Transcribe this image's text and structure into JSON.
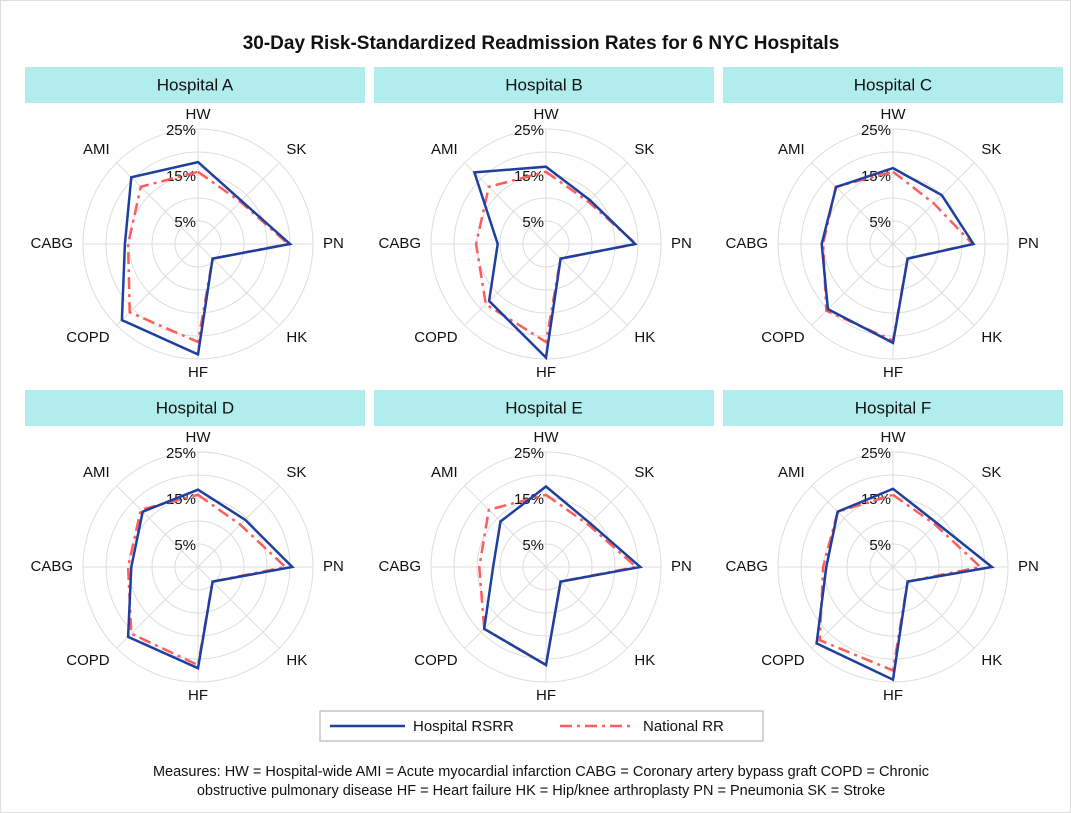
{
  "title": "30-Day Risk-Standardized Readmission Rates for 6 NYC Hospitals",
  "footnote": [
    "Measures: HW = Hospital-wide AMI = Acute myocardial infarction  CABG = Coronary artery bypass graft COPD = Chronic",
    "obstructive pulmonary disease HF = Heart failure  HK = Hip/knee arthroplasty  PN = Pneumonia  SK = Stroke"
  ],
  "chart_data": [
    {
      "type": "radar",
      "title": "Hospital A",
      "categories": [
        "HW",
        "SK",
        "PN",
        "HK",
        "HF",
        "COPD",
        "CABG",
        "AMI"
      ],
      "rlim": [
        0,
        25
      ],
      "rticks": [
        {
          "value": 5,
          "label": "5%"
        },
        {
          "value": 15,
          "label": "15%"
        },
        {
          "value": 25,
          "label": "25%"
        }
      ],
      "rminor": [
        10,
        20
      ],
      "grid": true,
      "series": [
        {
          "name": "Hospital RSRR",
          "color": "#1f3f9f",
          "line_style": "solid",
          "values": [
            17.8,
            13.3,
            20,
            4.5,
            24,
            23.4,
            15.9,
            20.5
          ]
        },
        {
          "name": "National RR",
          "color": "#ff5c5c",
          "line_style": "dashdot",
          "values": [
            15.7,
            13,
            19.6,
            4.5,
            21.3,
            21,
            15.2,
            17.6
          ]
        }
      ]
    },
    {
      "type": "radar",
      "title": "Hospital B",
      "categories": [
        "HW",
        "SK",
        "PN",
        "HK",
        "HF",
        "COPD",
        "CABG",
        "AMI"
      ],
      "rlim": [
        0,
        25
      ],
      "rticks": [
        {
          "value": 5,
          "label": "5%"
        },
        {
          "value": 15,
          "label": "15%"
        },
        {
          "value": 25,
          "label": "25%"
        }
      ],
      "rminor": [
        10,
        20
      ],
      "grid": true,
      "series": [
        {
          "name": "Hospital RSRR",
          "color": "#1f3f9f",
          "line_style": "solid",
          "values": [
            16.8,
            13.5,
            19.4,
            4.5,
            24.7,
            17.5,
            10.5,
            22
          ]
        },
        {
          "name": "National RR",
          "color": "#ff5c5c",
          "line_style": "dashdot",
          "values": [
            15.7,
            13,
            19.6,
            4.5,
            21.3,
            18.5,
            15.2,
            17.6
          ]
        }
      ]
    },
    {
      "type": "radar",
      "title": "Hospital C",
      "categories": [
        "HW",
        "SK",
        "PN",
        "HK",
        "HF",
        "COPD",
        "CABG",
        "AMI"
      ],
      "rlim": [
        0,
        25
      ],
      "rticks": [
        {
          "value": 5,
          "label": "5%"
        },
        {
          "value": 15,
          "label": "15%"
        },
        {
          "value": 25,
          "label": "25%"
        }
      ],
      "rminor": [
        10,
        20
      ],
      "grid": true,
      "series": [
        {
          "name": "Hospital RSRR",
          "color": "#1f3f9f",
          "line_style": "solid",
          "values": [
            16.5,
            15,
            17.5,
            4.5,
            21.5,
            20,
            15.5,
            17.5
          ]
        },
        {
          "name": "National RR",
          "color": "#ff5c5c",
          "line_style": "dashdot",
          "values": [
            15.7,
            12.5,
            17.3,
            4.5,
            21,
            20.5,
            15.2,
            17.6
          ]
        }
      ]
    },
    {
      "type": "radar",
      "title": "Hospital D",
      "categories": [
        "HW",
        "SK",
        "PN",
        "HK",
        "HF",
        "COPD",
        "CABG",
        "AMI"
      ],
      "rlim": [
        0,
        25
      ],
      "rticks": [
        {
          "value": 5,
          "label": "5%"
        },
        {
          "value": 15,
          "label": "15%"
        },
        {
          "value": 25,
          "label": "25%"
        }
      ],
      "rminor": [
        10,
        20
      ],
      "grid": true,
      "series": [
        {
          "name": "Hospital RSRR",
          "color": "#1f3f9f",
          "line_style": "solid",
          "values": [
            16.8,
            14.5,
            20.5,
            4.5,
            22,
            21.5,
            14.5,
            17
          ]
        },
        {
          "name": "National RR",
          "color": "#ff5c5c",
          "line_style": "dashdot",
          "values": [
            15.7,
            13,
            19,
            4.5,
            21.3,
            20.5,
            15.2,
            17.6
          ]
        }
      ]
    },
    {
      "type": "radar",
      "title": "Hospital E",
      "categories": [
        "HW",
        "SK",
        "PN",
        "HK",
        "HF",
        "COPD",
        "CABG",
        "AMI"
      ],
      "rlim": [
        0,
        25
      ],
      "rticks": [
        {
          "value": 5,
          "label": "5%"
        },
        {
          "value": 15,
          "label": "15%"
        },
        {
          "value": 25,
          "label": "25%"
        }
      ],
      "rminor": [
        10,
        20
      ],
      "grid": true,
      "series": [
        {
          "name": "Hospital RSRR",
          "color": "#1f3f9f",
          "line_style": "solid",
          "values": [
            17.5,
            13.5,
            20.5,
            4.5,
            21.3,
            19,
            11.5,
            14
          ]
        },
        {
          "name": "National RR",
          "color": "#ff5c5c",
          "line_style": "dashdot",
          "values": [
            15.7,
            13,
            19.6,
            4.5,
            21.3,
            19,
            14.5,
            17.6
          ]
        }
      ]
    },
    {
      "type": "radar",
      "title": "Hospital F",
      "categories": [
        "HW",
        "SK",
        "PN",
        "HK",
        "HF",
        "COPD",
        "CABG",
        "AMI"
      ],
      "rlim": [
        0,
        25
      ],
      "rticks": [
        {
          "value": 5,
          "label": "5%"
        },
        {
          "value": 15,
          "label": "15%"
        },
        {
          "value": 25,
          "label": "25%"
        }
      ],
      "rminor": [
        10,
        20
      ],
      "grid": true,
      "series": [
        {
          "name": "Hospital RSRR",
          "color": "#1f3f9f",
          "line_style": "solid",
          "values": [
            17,
            13.5,
            21.5,
            4.5,
            24.5,
            23.5,
            14.5,
            17
          ]
        },
        {
          "name": "National RR",
          "color": "#ff5c5c",
          "line_style": "dashdot",
          "values": [
            15.7,
            13,
            19,
            4.5,
            22.5,
            22.5,
            15.2,
            17
          ]
        }
      ]
    }
  ]
}
